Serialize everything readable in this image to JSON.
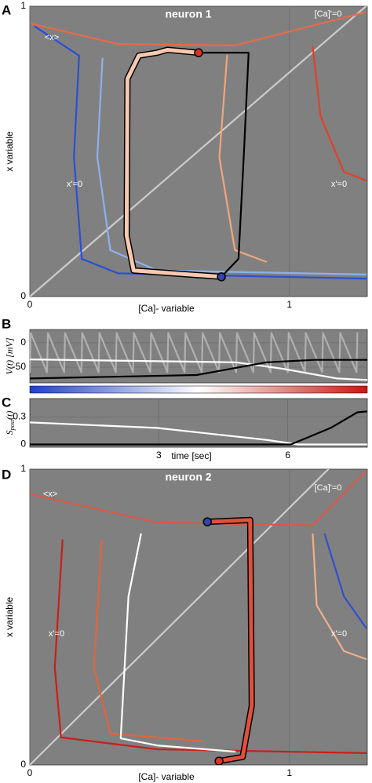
{
  "chart_data": [
    {
      "type": "line",
      "panel": "A",
      "title": "neuron 1",
      "xlabel": "[Ca]- variable",
      "ylabel": "x variable",
      "xlim": [
        0,
        1.3
      ],
      "ylim": [
        0,
        1
      ],
      "xticks": [
        0,
        1
      ],
      "yticks": [
        0,
        1
      ],
      "grid": true,
      "annotations": [
        "<x>",
        "[Ca]'=0",
        "x'=0",
        "x'=0"
      ],
      "series": [
        {
          "color": "#cccccc",
          "x": [
            0,
            1.295
          ],
          "values": [
            0,
            1
          ]
        },
        {
          "color": "#e86a4a",
          "x": [
            0.006,
            0.34,
            0.79,
            1.295
          ],
          "values": [
            0.94,
            0.87,
            0.865,
            0.98
          ]
        },
        {
          "color": "#2a4fd6",
          "x": [
            0.02,
            0.19,
            0.17,
            0.2,
            0.34,
            1.295
          ],
          "values": [
            0.93,
            0.83,
            0.48,
            0.13,
            0.08,
            0.062
          ]
        },
        {
          "color": "#8fb0ec",
          "x": [
            0.28,
            0.26,
            0.31,
            0.49,
            1.295
          ],
          "values": [
            0.82,
            0.48,
            0.16,
            0.09,
            0.076
          ]
        },
        {
          "color": "#f0a57f",
          "x": [
            0.76,
            0.73,
            0.79,
            0.91
          ],
          "values": [
            0.83,
            0.48,
            0.16,
            0.12
          ]
        },
        {
          "color": "#e0402a",
          "x": [
            1.09,
            1.12,
            1.21,
            1.295
          ],
          "values": [
            0.86,
            0.62,
            0.43,
            0.4
          ]
        },
        {
          "color": "#000000",
          "x": [
            0.65,
            0.843,
            0.825,
            0.804,
            0.738
          ],
          "values": [
            0.84,
            0.84,
            0.5,
            0.13,
            0.068
          ]
        },
        {
          "color": "#f8c8b0",
          "outline": "#000000",
          "marker_colors": [
            "#3344aa",
            "#e03020"
          ],
          "x": [
            0.738,
            0.4,
            0.373,
            0.376,
            0.42,
            0.49,
            0.53,
            0.65
          ],
          "values": [
            0.068,
            0.09,
            0.21,
            0.75,
            0.83,
            0.84,
            0.85,
            0.84
          ]
        }
      ]
    },
    {
      "type": "line",
      "panel": "B",
      "ylabel": "V(t) [mV]",
      "xlim": [
        0,
        7.85
      ],
      "ylim": [
        -82,
        27
      ],
      "yticks": [
        0,
        -50
      ],
      "grid": true,
      "series": [
        {
          "color": "#b0b0b0",
          "x": [
            0,
            0.02,
            0.4,
            0.42,
            0.8,
            0.82,
            1.2,
            1.22,
            1.6,
            1.62,
            2,
            2.02,
            2.4,
            2.42,
            2.8,
            2.82,
            3.2,
            3.22,
            3.6,
            3.62,
            4,
            4.02,
            4.4,
            4.42,
            4.8,
            4.82,
            5.2,
            5.22,
            5.6,
            5.62,
            6,
            6.02,
            6.4,
            6.42,
            6.8,
            6.82,
            7.2,
            7.22,
            7.6,
            7.62
          ],
          "values": [
            -60,
            20,
            -60,
            20,
            -60,
            20,
            -60,
            20,
            -60,
            20,
            -60,
            20,
            -60,
            20,
            -60,
            20,
            -60,
            20,
            -60,
            20,
            -60,
            20,
            -60,
            20,
            -60,
            20,
            -60,
            20,
            -60,
            20,
            -60,
            20,
            -60,
            20,
            -60,
            20,
            -60,
            20,
            -60,
            20
          ]
        },
        {
          "color": "#ffffff",
          "x": [
            0,
            4.79,
            5.87,
            7.15,
            7.85
          ],
          "values": [
            -34,
            -40,
            -53,
            -73,
            -76
          ]
        },
        {
          "color": "#000000",
          "x": [
            0,
            3.88,
            5.5,
            6.62,
            7.85
          ],
          "values": [
            -73,
            -66,
            -40,
            -35,
            -35
          ]
        }
      ]
    },
    {
      "type": "line",
      "panel": "C",
      "ylabel": [
        "S",
        "post",
        "(t)"
      ],
      "xlabel": "time [sec]",
      "xlim": [
        0,
        7.85
      ],
      "ylim": [
        -0.03,
        0.5
      ],
      "xticks": [
        3,
        6
      ],
      "yticks": [
        0.3,
        0.0
      ],
      "grid": true,
      "series": [
        {
          "color": "#ffffff",
          "x": [
            0,
            2.95,
            5.5,
            6.24,
            7.85
          ],
          "values": [
            0.24,
            0.18,
            0.05,
            0,
            0
          ]
        },
        {
          "color": "#000000",
          "x": [
            0,
            6.07,
            7.0,
            7.62,
            7.85
          ],
          "values": [
            0,
            0,
            0.18,
            0.35,
            0.36
          ]
        }
      ]
    },
    {
      "type": "line",
      "panel": "D",
      "title": "neuron 2",
      "xlabel": "[Ca]- variable",
      "ylabel": "x variable",
      "xlim": [
        0,
        1.3
      ],
      "ylim": [
        0,
        1
      ],
      "xticks": [
        0,
        1
      ],
      "yticks": [
        0,
        1
      ],
      "grid": true,
      "annotations": [
        "<x>",
        "[Ca]'=0",
        "x'=0",
        "x'=0"
      ],
      "series": [
        {
          "color": "#cccccc",
          "x": [
            0,
            1.15
          ],
          "values": [
            0,
            1
          ]
        },
        {
          "color": "#d85a4a",
          "x": [
            0.006,
            0.49,
            1.09,
            1.295
          ],
          "values": [
            0.915,
            0.82,
            0.81,
            0.995
          ]
        },
        {
          "color": "#c8201a",
          "x": [
            0.126,
            0.096,
            0.12,
            0.49,
            1.295
          ],
          "values": [
            0.76,
            0.33,
            0.093,
            0.053,
            0.04
          ]
        },
        {
          "color": "#e0643e",
          "x": [
            0.277,
            0.247,
            0.31,
            0.67
          ],
          "values": [
            0.76,
            0.33,
            0.106,
            0.08
          ]
        },
        {
          "color": "#f0b08a",
          "x": [
            1.09,
            1.105,
            1.21,
            1.295
          ],
          "values": [
            0.78,
            0.54,
            0.385,
            0.358
          ]
        },
        {
          "color": "#3050d0",
          "x": [
            1.136,
            1.21,
            1.295
          ],
          "values": [
            0.78,
            0.57,
            0.464
          ]
        },
        {
          "color": "#ffffff",
          "x": [
            0.428,
            0.38,
            0.35,
            0.49,
            0.79
          ],
          "values": [
            0.78,
            0.57,
            0.09,
            0.066,
            0.045
          ]
        },
        {
          "color": "#e0503c",
          "outline": "#000000",
          "marker_colors": [
            "#3344aa",
            "#e03020"
          ],
          "x": [
            0.684,
            0.849,
            0.855,
            0.82,
            0.729
          ],
          "values": [
            0.822,
            0.828,
            0.2,
            0.027,
            0.013
          ]
        }
      ]
    }
  ]
}
